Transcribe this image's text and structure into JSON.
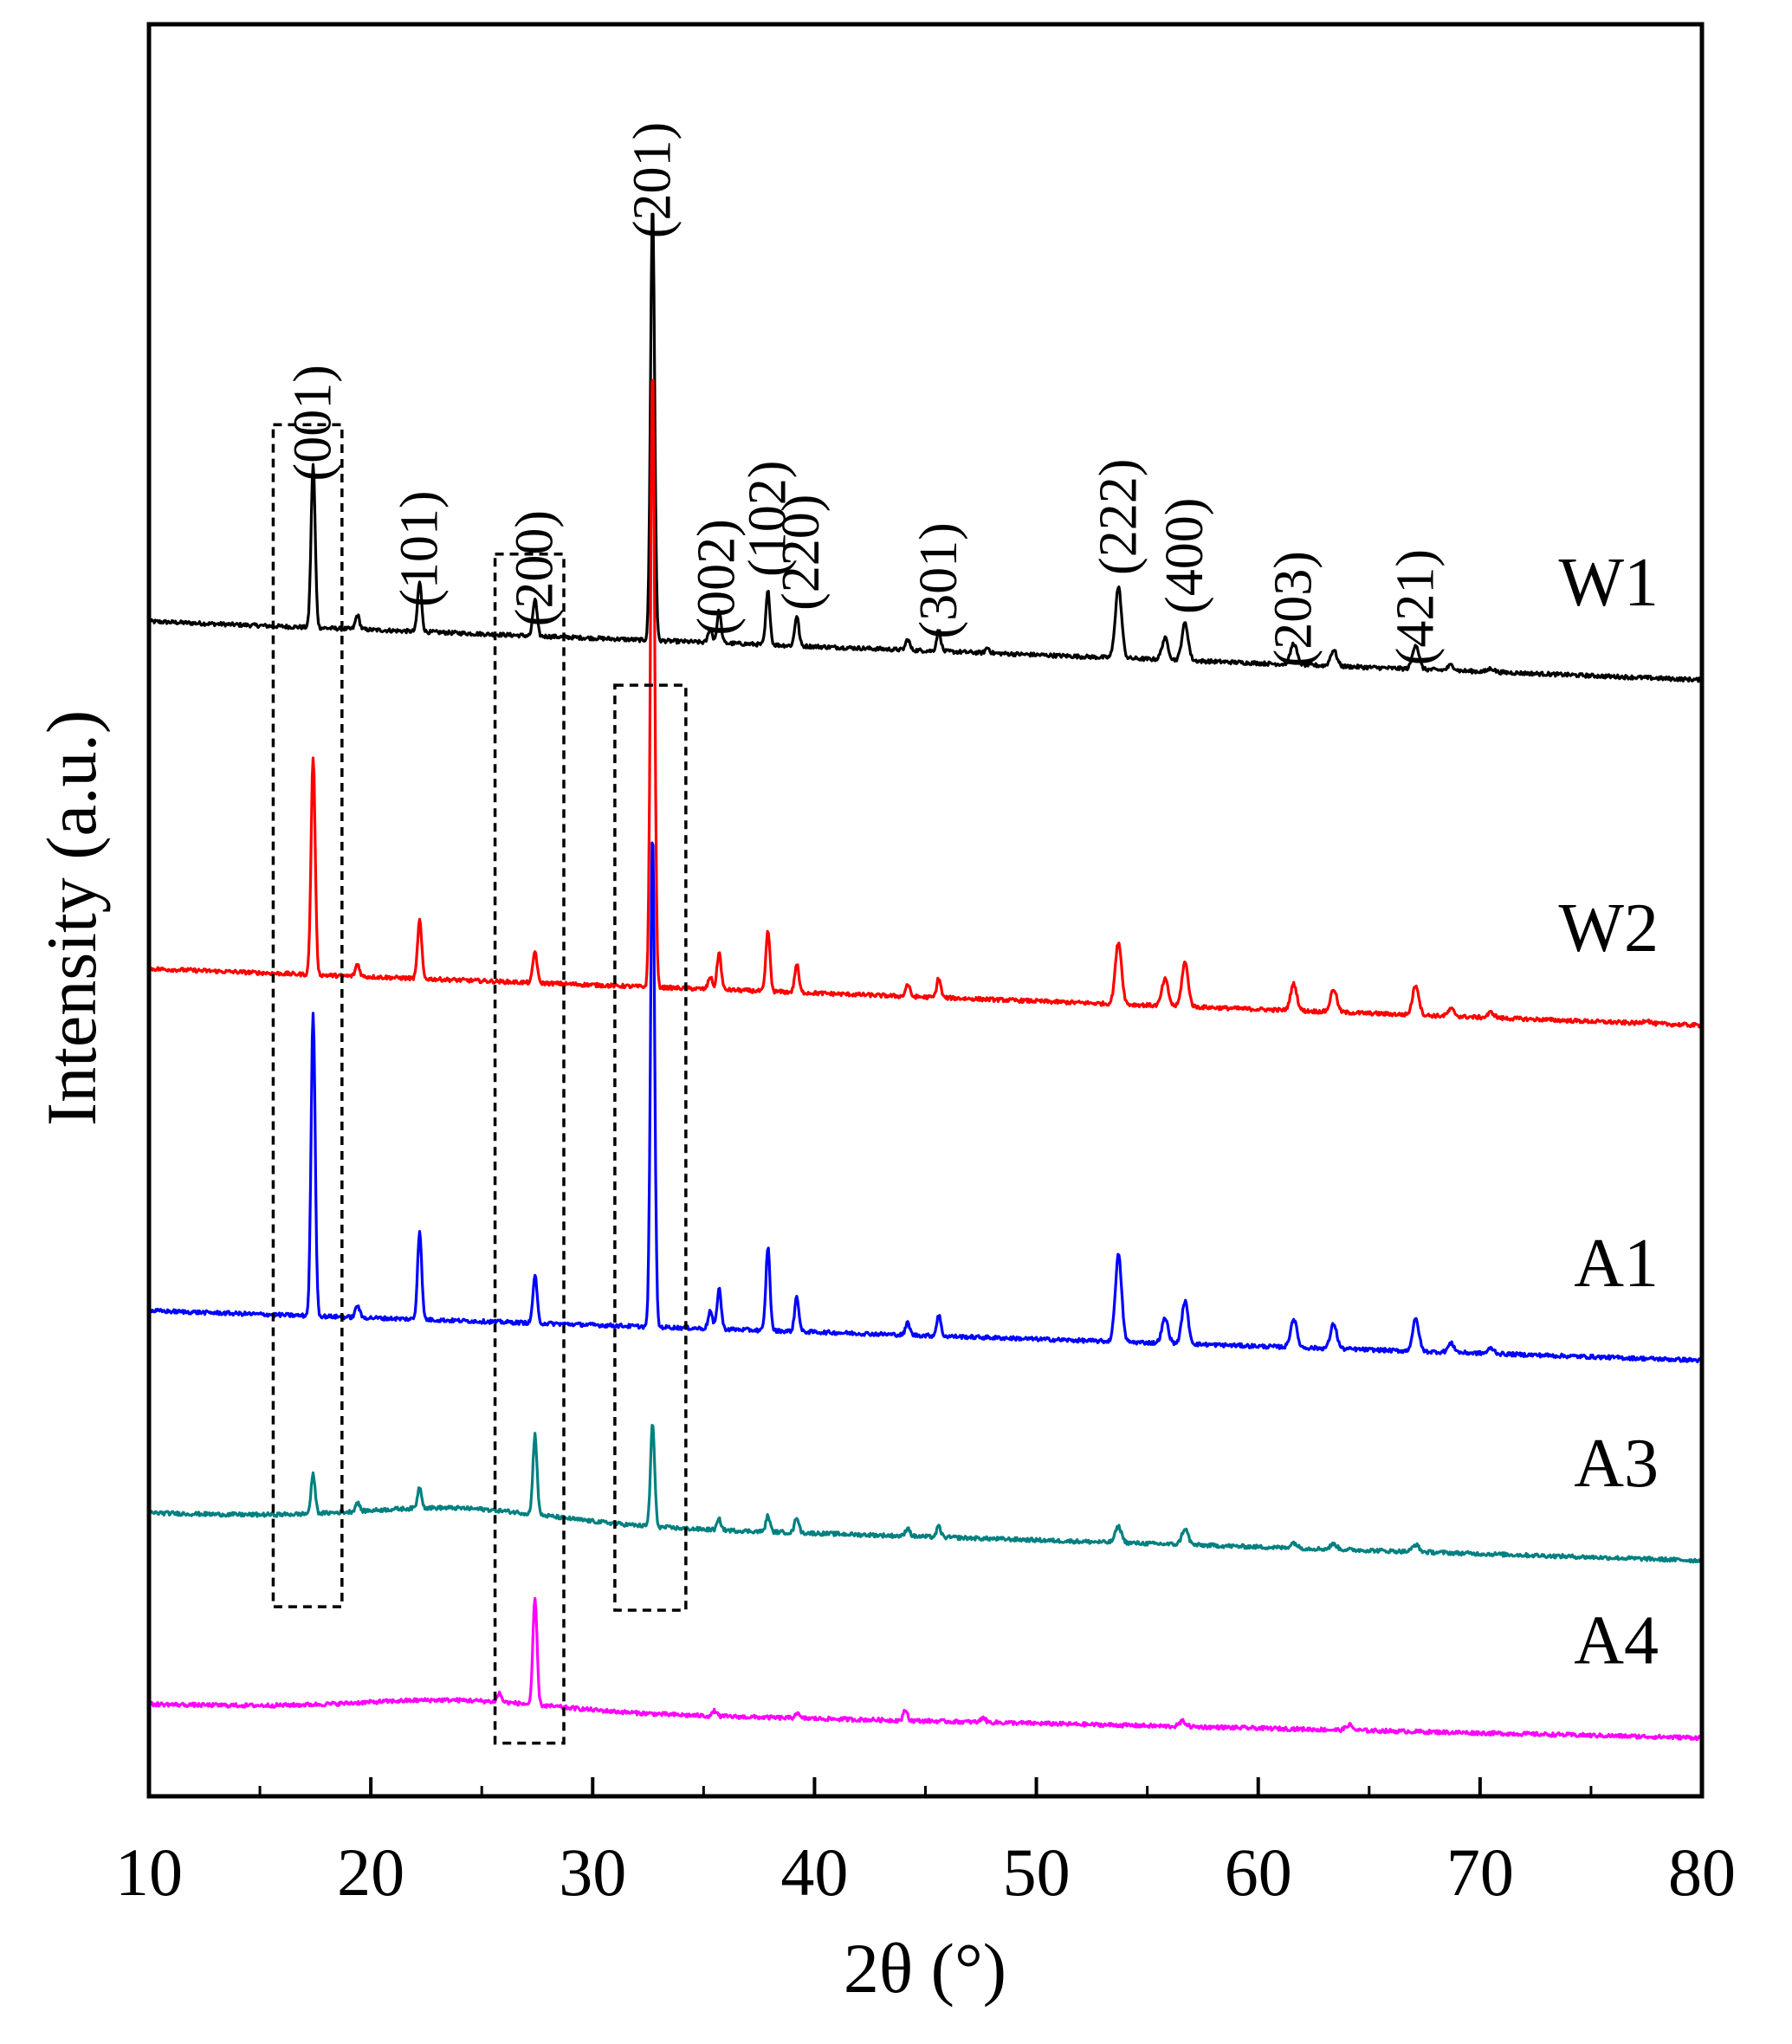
{
  "chart_data": {
    "type": "line",
    "title": "",
    "xlabel": "2θ (°)",
    "ylabel": "Intensity (a.u.)",
    "xlim": [
      10,
      80
    ],
    "x_ticks": [
      10,
      20,
      30,
      40,
      50,
      60,
      70,
      80
    ],
    "x_tick_labels": [
      "10",
      "20",
      "30",
      "40",
      "50",
      "60",
      "70",
      "80"
    ],
    "ylim": [
      0,
      100
    ],
    "grid": false,
    "legend": "inline labels at right",
    "series": [
      {
        "name": "W1",
        "label": "W1",
        "color": "#000000",
        "baseline": 66.3,
        "baseline_end": 63.0,
        "hump": 0,
        "peaks": [
          [
            17.4,
            9.2
          ],
          [
            19.4,
            0.8
          ],
          [
            22.2,
            2.8
          ],
          [
            27.4,
            2.1
          ],
          [
            32.7,
            24.6
          ],
          [
            35.3,
            0.8
          ],
          [
            35.7,
            1.8
          ],
          [
            37.9,
            3.0
          ],
          [
            39.2,
            1.7
          ],
          [
            44.2,
            0.6
          ],
          [
            45.6,
            1.2
          ],
          [
            47.8,
            0.3
          ],
          [
            53.7,
            4.0
          ],
          [
            55.8,
            1.2
          ],
          [
            56.7,
            2.1
          ],
          [
            61.6,
            1.2
          ],
          [
            63.4,
            0.9
          ],
          [
            67.1,
            1.4
          ],
          [
            68.7,
            0.3
          ],
          [
            70.5,
            0.2
          ]
        ]
      },
      {
        "name": "W2",
        "label": "W2",
        "color": "#ff0000",
        "baseline": 46.7,
        "baseline_end": 43.5,
        "hump": 0,
        "peaks": [
          [
            17.4,
            12.3
          ],
          [
            19.4,
            0.7
          ],
          [
            22.2,
            3.3
          ],
          [
            27.4,
            1.8
          ],
          [
            32.7,
            35.0
          ],
          [
            35.3,
            0.7
          ],
          [
            35.7,
            2.1
          ],
          [
            37.9,
            3.4
          ],
          [
            39.2,
            1.6
          ],
          [
            44.2,
            0.7
          ],
          [
            45.6,
            1.1
          ],
          [
            53.7,
            3.5
          ],
          [
            55.8,
            1.5
          ],
          [
            56.7,
            2.5
          ],
          [
            61.6,
            1.5
          ],
          [
            63.4,
            1.3
          ],
          [
            67.1,
            1.7
          ],
          [
            68.7,
            0.4
          ],
          [
            70.5,
            0.3
          ],
          [
            77.5,
            0.2
          ]
        ]
      },
      {
        "name": "A1",
        "label": "A1",
        "color": "#0000ff",
        "baseline": 27.4,
        "baseline_end": 24.6,
        "hump": 0,
        "peaks": [
          [
            17.4,
            17.1
          ],
          [
            19.4,
            0.7
          ],
          [
            22.2,
            5.0
          ],
          [
            27.4,
            2.7
          ],
          [
            32.7,
            27.9
          ],
          [
            35.3,
            1.0
          ],
          [
            35.7,
            2.3
          ],
          [
            37.9,
            4.7
          ],
          [
            39.2,
            2.0
          ],
          [
            44.2,
            0.7
          ],
          [
            45.6,
            1.2
          ],
          [
            53.7,
            4.9
          ],
          [
            55.8,
            1.4
          ],
          [
            56.7,
            2.4
          ],
          [
            61.6,
            1.6
          ],
          [
            63.4,
            1.4
          ],
          [
            67.1,
            1.8
          ],
          [
            68.7,
            0.5
          ],
          [
            70.5,
            0.3
          ]
        ]
      },
      {
        "name": "A3",
        "label": "A3",
        "color": "#008080",
        "baseline": 16.0,
        "baseline_end": 13.3,
        "hump": 0.8,
        "peaks": [
          [
            17.4,
            2.2
          ],
          [
            19.4,
            0.5
          ],
          [
            22.2,
            1.2
          ],
          [
            27.4,
            4.5
          ],
          [
            32.7,
            5.8
          ],
          [
            35.7,
            0.6
          ],
          [
            37.9,
            0.9
          ],
          [
            39.2,
            0.9
          ],
          [
            44.2,
            0.5
          ],
          [
            45.6,
            0.6
          ],
          [
            53.7,
            0.9
          ],
          [
            56.7,
            0.9
          ],
          [
            61.6,
            0.3
          ],
          [
            63.4,
            0.3
          ],
          [
            67.1,
            0.4
          ]
        ]
      },
      {
        "name": "A4",
        "label": "A4",
        "color": "#ff00ff",
        "baseline": 5.2,
        "baseline_end": 3.3,
        "hump": 0.6,
        "peaks": [
          [
            27.4,
            6.0
          ],
          [
            25.8,
            0.5
          ],
          [
            35.5,
            0.3
          ],
          [
            39.2,
            0.3
          ],
          [
            44.1,
            0.6
          ],
          [
            47.6,
            0.3
          ],
          [
            56.6,
            0.3
          ],
          [
            64.1,
            0.3
          ]
        ]
      }
    ],
    "peak_labels": [
      {
        "text": "(001)",
        "x": 17.4,
        "y": 77.5
      },
      {
        "text": "(101)",
        "x": 22.2,
        "y": 70.4
      },
      {
        "text": "(200)",
        "x": 27.4,
        "y": 69.3
      },
      {
        "text": "(201)",
        "x": 32.7,
        "y": 91.2
      },
      {
        "text": "(002)",
        "x": 35.6,
        "y": 68.8
      },
      {
        "text": "(102)",
        "x": 37.9,
        "y": 72.1
      },
      {
        "text": "(220)",
        "x": 39.4,
        "y": 70.2
      },
      {
        "text": "(301)",
        "x": 45.6,
        "y": 68.6
      },
      {
        "text": "(222)",
        "x": 53.7,
        "y": 72.2
      },
      {
        "text": "(400)",
        "x": 56.7,
        "y": 70.0
      },
      {
        "text": "(203)",
        "x": 61.6,
        "y": 67.0
      },
      {
        "text": "(421)",
        "x": 67.1,
        "y": 67.1
      }
    ],
    "highlight_boxes": [
      {
        "x_range": [
          15.6,
          18.7
        ],
        "y_range": [
          10.7,
          77.4
        ]
      },
      {
        "x_range": [
          25.6,
          28.7
        ],
        "y_range": [
          3.0,
          70.1
        ]
      },
      {
        "x_range": [
          31.0,
          34.2
        ],
        "y_range": [
          10.5,
          62.7
        ]
      }
    ]
  }
}
